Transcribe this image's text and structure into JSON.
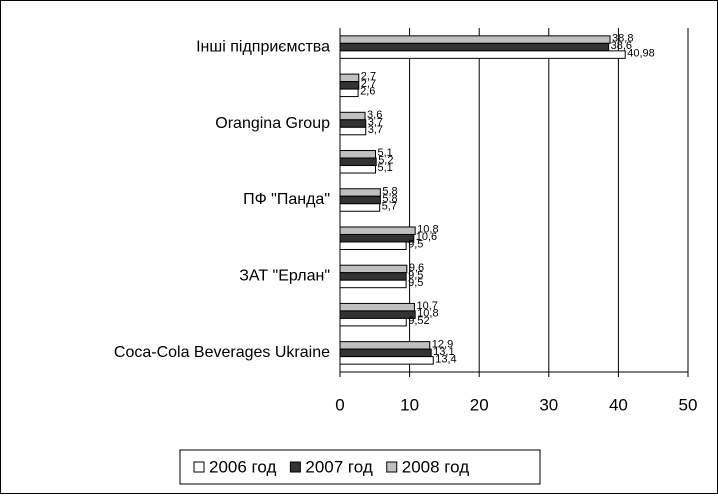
{
  "chart_data": {
    "type": "barh",
    "categories": [
      "Інші підприємства",
      null,
      "Orangina Group",
      null,
      "ПФ \"Панда\"",
      null,
      "ЗАТ \"Ерлан\"",
      null,
      "Coca-Cola Beverages Ukraine"
    ],
    "series": [
      {
        "name": "2008 год",
        "color": "#c0c0c0",
        "values": [
          38.8,
          2.7,
          3.6,
          5.1,
          5.8,
          10.8,
          9.6,
          10.7,
          12.9
        ],
        "value_labels": [
          "38,8",
          "2,7",
          "3,6",
          "5,1",
          "5,8",
          "10,8",
          "9,6",
          "10,7",
          "12,9"
        ]
      },
      {
        "name": "2007 год",
        "color": "#333333",
        "values": [
          38.6,
          2.7,
          3.7,
          5.2,
          5.8,
          10.6,
          9.5,
          10.8,
          13.1
        ],
        "value_labels": [
          "38,6",
          "2,7",
          "3,7",
          "5,2",
          "5,8",
          "10,6",
          "9,5",
          "10,8",
          "13,1"
        ]
      },
      {
        "name": "2006 год",
        "color": "#ffffff",
        "values": [
          40.98,
          2.6,
          3.7,
          5.1,
          5.7,
          9.5,
          9.5,
          9.52,
          13.4
        ],
        "value_labels": [
          "40,98",
          "2,6",
          "3,7",
          "5,1",
          "5,7",
          "9,5",
          "9,5",
          "9,52",
          "13,4"
        ]
      }
    ],
    "xlim": [
      0,
      50
    ],
    "xticks": [
      0,
      10,
      20,
      30,
      40,
      50
    ],
    "grid": true,
    "legend": "bottom"
  }
}
